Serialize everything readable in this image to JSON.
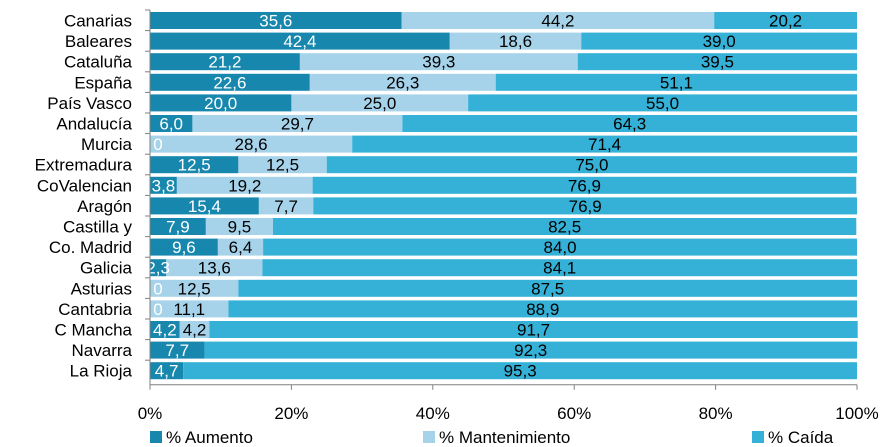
{
  "colors": {
    "aumento": "#1787AE",
    "mantenimiento": "#A6D3EA",
    "caida": "#35B0D6",
    "label_dark": "#000000",
    "label_light": "#ffffff"
  },
  "chart_data": {
    "type": "bar",
    "orientation": "horizontal",
    "stacked": "percent",
    "categories": [
      "Canarias",
      "Baleares",
      "Cataluña",
      "España",
      "País Vasco",
      "Andalucía",
      "Murcia",
      "Extremadura",
      "CoValencian",
      "Aragón",
      "Castilla y",
      "Co. Madrid",
      "Galicia",
      "Asturias",
      "Cantabria",
      "C Mancha",
      "Navarra",
      "La Rioja"
    ],
    "series": [
      {
        "name": "% Aumento",
        "values": [
          35.6,
          42.4,
          21.2,
          22.6,
          20.0,
          6.0,
          0.0,
          12.5,
          3.8,
          15.4,
          7.9,
          9.6,
          2.3,
          0.0,
          0.0,
          4.2,
          7.7,
          4.7
        ],
        "labels": [
          "35,6",
          "42,4",
          "21,2",
          "22,6",
          "20,0",
          "6,0",
          "0",
          "12,5",
          "3,8",
          "15,4",
          "7,9",
          "9,6",
          "2,3",
          "0",
          "0",
          "4,2",
          "7,7",
          "4,7"
        ]
      },
      {
        "name": "% Mantenimiento",
        "values": [
          44.2,
          18.6,
          39.3,
          26.3,
          25.0,
          29.7,
          28.6,
          12.5,
          19.2,
          7.7,
          9.5,
          6.4,
          13.6,
          12.5,
          11.1,
          4.2,
          0.0,
          0.0
        ],
        "labels": [
          "44,2",
          "18,6",
          "39,3",
          "26,3",
          "25,0",
          "29,7",
          "28,6",
          "12,5",
          "19,2",
          "7,7",
          "9,5",
          "6,4",
          "13,6",
          "12,5",
          "11,1",
          "4,2",
          "",
          ""
        ]
      },
      {
        "name": "% Caída",
        "values": [
          20.2,
          39.0,
          39.5,
          51.1,
          55.0,
          64.3,
          71.4,
          75.0,
          76.9,
          76.9,
          82.5,
          84.0,
          84.1,
          87.5,
          88.9,
          91.7,
          92.3,
          95.3
        ],
        "labels": [
          "20,2",
          "39,0",
          "39,5",
          "51,1",
          "55,0",
          "64,3",
          "71,4",
          "75,0",
          "76,9",
          "76,9",
          "82,5",
          "84,0",
          "84,1",
          "87,5",
          "88,9",
          "91,7",
          "92,3",
          "95,3"
        ]
      }
    ],
    "xlim": [
      0,
      100
    ],
    "x_ticks": [
      "0%",
      "20%",
      "40%",
      "60%",
      "80%",
      "100%"
    ],
    "legend_position": "bottom",
    "grid": false
  }
}
